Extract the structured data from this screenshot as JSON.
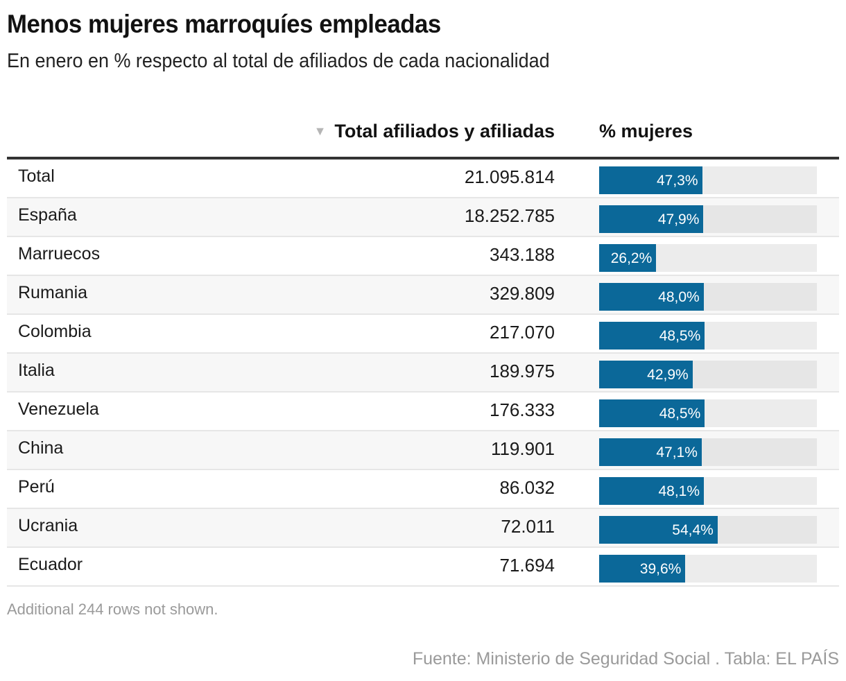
{
  "title": "Menos mujeres marroquíes empleadas",
  "subtitle": "En enero en % respecto al total de afiliados de cada nacionalidad",
  "columns": {
    "sort_icon": "▼",
    "total": "Total afiliados y afiliadas",
    "pct": "% mujeres"
  },
  "note": "Additional 244 rows not shown.",
  "source": "Fuente: Ministerio de Seguridad Social . Tabla: EL PAÍS",
  "colors": {
    "bar": "#0b6899",
    "track": "#ececec",
    "header_rule": "#333333"
  },
  "chart_data": {
    "type": "table",
    "title": "Menos mujeres marroquíes empleadas",
    "subtitle": "En enero en % respecto al total de afiliados de cada nacionalidad",
    "columns": [
      "",
      "Total afiliados y afiliadas",
      "% mujeres"
    ],
    "sorted_by": "Total afiliados y afiliadas (descending)",
    "bar_scale": [
      0,
      100
    ],
    "rows": [
      {
        "name": "Total",
        "total": "21.095.814",
        "pct": 47.3,
        "pct_label": "47,3%"
      },
      {
        "name": "España",
        "total": "18.252.785",
        "pct": 47.9,
        "pct_label": "47,9%"
      },
      {
        "name": "Marruecos",
        "total": "343.188",
        "pct": 26.2,
        "pct_label": "26,2%"
      },
      {
        "name": "Rumania",
        "total": "329.809",
        "pct": 48.0,
        "pct_label": "48,0%"
      },
      {
        "name": "Colombia",
        "total": "217.070",
        "pct": 48.5,
        "pct_label": "48,5%"
      },
      {
        "name": "Italia",
        "total": "189.975",
        "pct": 42.9,
        "pct_label": "42,9%"
      },
      {
        "name": "Venezuela",
        "total": "176.333",
        "pct": 48.5,
        "pct_label": "48,5%"
      },
      {
        "name": "China",
        "total": "119.901",
        "pct": 47.1,
        "pct_label": "47,1%"
      },
      {
        "name": "Perú",
        "total": "86.032",
        "pct": 48.1,
        "pct_label": "48,1%"
      },
      {
        "name": "Ucrania",
        "total": "72.011",
        "pct": 54.4,
        "pct_label": "54,4%"
      },
      {
        "name": "Ecuador",
        "total": "71.694",
        "pct": 39.6,
        "pct_label": "39,6%"
      }
    ]
  }
}
